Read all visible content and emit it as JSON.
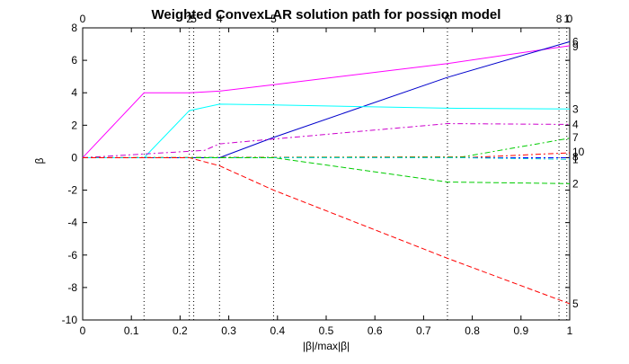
{
  "chart_data": {
    "type": "line",
    "title": "Weighted ConvexLAR solution path for possion model",
    "xlabel": "|β|/max|β|",
    "ylabel": "β",
    "xlim": [
      0,
      1
    ],
    "ylim": [
      -10,
      8
    ],
    "grid": false,
    "legend": "none",
    "x_ticks": [
      0,
      0.1,
      0.2,
      0.3,
      0.4,
      0.5,
      0.6,
      0.7,
      0.8,
      0.9,
      1
    ],
    "x_tick_labels": [
      "0",
      "0.1",
      "0.2",
      "0.3",
      "0.4",
      "0.5",
      "0.6",
      "0.7",
      "0.8",
      "0.9",
      "1"
    ],
    "y_ticks": [
      -10,
      -8,
      -6,
      -4,
      -2,
      0,
      2,
      4,
      6,
      8
    ],
    "y_tick_labels": [
      "-10",
      "-8",
      "-6",
      "-4",
      "-2",
      "0",
      "2",
      "4",
      "6",
      "8"
    ],
    "breakpoints": [
      0.126,
      0.219,
      0.228,
      0.281,
      0.392,
      0.749,
      0.978,
      0.994
    ],
    "top_labels": [
      {
        "x": 0,
        "label": "0"
      },
      {
        "x": 0.219,
        "label": "2"
      },
      {
        "x": 0.228,
        "label": "5"
      },
      {
        "x": 0.281,
        "label": "4"
      },
      {
        "x": 0.392,
        "label": "5"
      },
      {
        "x": 0.749,
        "label": "6"
      },
      {
        "x": 0.978,
        "label": "8"
      },
      {
        "x": 0.994,
        "label": "1"
      },
      {
        "x": 1.0,
        "label": "0"
      }
    ],
    "series": [
      {
        "label": "9",
        "color": "#ff00ff",
        "dash": "solid",
        "x": [
          0,
          0.126,
          0.219,
          0.281,
          0.392,
          0.749,
          1.0
        ],
        "y": [
          0,
          4.0,
          4.0,
          4.1,
          4.5,
          5.8,
          6.9
        ]
      },
      {
        "label": "6",
        "color": "#0000cc",
        "dash": "solid",
        "x": [
          0,
          0.281,
          0.392,
          0.749,
          1.0
        ],
        "y": [
          0,
          0,
          1.25,
          4.95,
          7.15
        ]
      },
      {
        "label": "3",
        "color": "#00ffff",
        "dash": "solid",
        "x": [
          0,
          0.126,
          0.219,
          0.281,
          0.392,
          0.749,
          1.0
        ],
        "y": [
          0,
          0,
          2.9,
          3.3,
          3.25,
          3.05,
          3.0
        ]
      },
      {
        "label": "4",
        "color": "#cc00cc",
        "dash": "dashdot",
        "x": [
          0,
          0.25,
          0.281,
          0.392,
          0.749,
          1.0
        ],
        "y": [
          0,
          0.45,
          0.85,
          1.15,
          2.1,
          2.05
        ]
      },
      {
        "label": "7",
        "color": "#00cc00",
        "dash": "dashdot",
        "x": [
          0,
          0.78,
          1.0
        ],
        "y": [
          0,
          0.05,
          1.2
        ]
      },
      {
        "label": "10",
        "color": "#ff0000",
        "dash": "dashdot",
        "x": [
          0,
          0.8,
          1.0
        ],
        "y": [
          0,
          0.02,
          0.3
        ]
      },
      {
        "label": "8",
        "color": "#0000ff",
        "dash": "dashdot",
        "x": [
          0,
          1.0
        ],
        "y": [
          0,
          0
        ]
      },
      {
        "label": "1",
        "color": "#00cccc",
        "dash": "dashdot",
        "x": [
          0,
          0.78,
          1.0
        ],
        "y": [
          0,
          0.0,
          -0.1
        ]
      },
      {
        "label": "2",
        "color": "#00cc00",
        "dash": "dashed",
        "x": [
          0,
          0.392,
          0.749,
          1.0
        ],
        "y": [
          0,
          0,
          -1.5,
          -1.6
        ]
      },
      {
        "label": "5",
        "color": "#ff0000",
        "dash": "dashed",
        "x": [
          0,
          0.219,
          0.281,
          0.392,
          0.749,
          1.0
        ],
        "y": [
          0,
          0,
          -0.5,
          -2.0,
          -6.2,
          -9.0
        ]
      }
    ],
    "right_labels": [
      {
        "y": 7.15,
        "label": "6"
      },
      {
        "y": 6.85,
        "label": "9"
      },
      {
        "y": 3.0,
        "label": "3"
      },
      {
        "y": 2.05,
        "label": "4"
      },
      {
        "y": 1.25,
        "label": "7"
      },
      {
        "y": 0.35,
        "label": "10"
      },
      {
        "y": 0.05,
        "label": "8"
      },
      {
        "y": -0.1,
        "label": "1"
      },
      {
        "y": -1.6,
        "label": "2"
      },
      {
        "y": -9.0,
        "label": "5"
      }
    ]
  }
}
